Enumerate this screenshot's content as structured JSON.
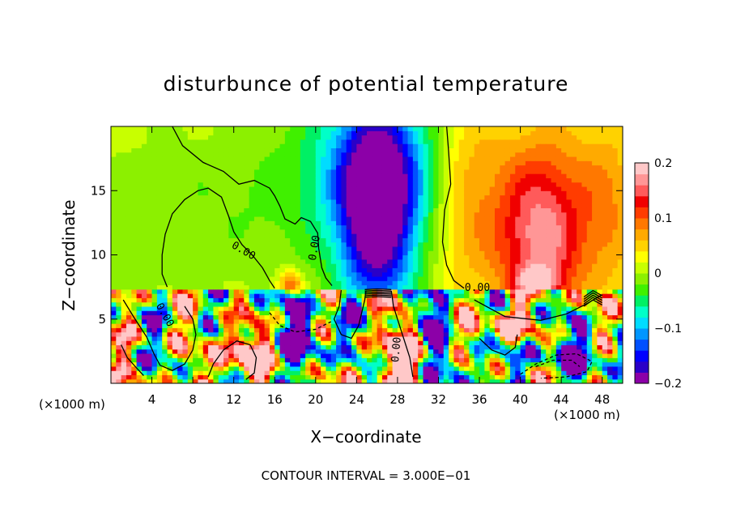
{
  "chart_data": {
    "type": "heatmap",
    "title": "disturbunce of potential temperature",
    "xlabel": "X−coordinate",
    "ylabel": "Z−coordinate",
    "x_unit_left": "(×1000 m)",
    "x_unit_right": "(×1000 m)",
    "xlim": [
      0,
      50
    ],
    "ylim": [
      0,
      20
    ],
    "x_ticks": [
      4,
      8,
      12,
      16,
      20,
      24,
      28,
      32,
      36,
      40,
      44,
      48
    ],
    "y_ticks": [
      5,
      10,
      15
    ],
    "colorbar": {
      "range": [
        -0.2,
        0.2
      ],
      "ticks": [
        {
          "value": 0.2,
          "label": "0.2"
        },
        {
          "value": 0.1,
          "label": "0.1"
        },
        {
          "value": 0.0,
          "label": "0"
        },
        {
          "value": -0.1,
          "label": "−0.1"
        },
        {
          "value": -0.2,
          "label": "−0.2"
        }
      ],
      "colors": [
        "#8c00a8",
        "#2a00c8",
        "#0000ff",
        "#0050ff",
        "#0096ff",
        "#00dcff",
        "#00ffc8",
        "#00f064",
        "#40f000",
        "#8cf000",
        "#c8ff00",
        "#ffff00",
        "#ffd200",
        "#ffaa00",
        "#ff7800",
        "#ff3c00",
        "#f00000",
        "#ff5a5a",
        "#ff9696",
        "#ffc8c8"
      ]
    },
    "contour_labels": [
      {
        "text": "0.00",
        "x": 12.8,
        "z": 10.1,
        "angle": 30
      },
      {
        "text": "0.00",
        "x": 20.2,
        "z": 10.5,
        "angle": -80
      },
      {
        "text": "0.00",
        "x": 35.8,
        "z": 7.2,
        "angle": 0
      },
      {
        "text": "0.00",
        "x": 28.2,
        "z": 2.6,
        "angle": -85
      },
      {
        "text": "0.00",
        "x": 5.0,
        "z": 5.2,
        "angle": 60
      }
    ],
    "contour_interval_text": "CONTOUR INTERVAL = 3.000E−01"
  }
}
